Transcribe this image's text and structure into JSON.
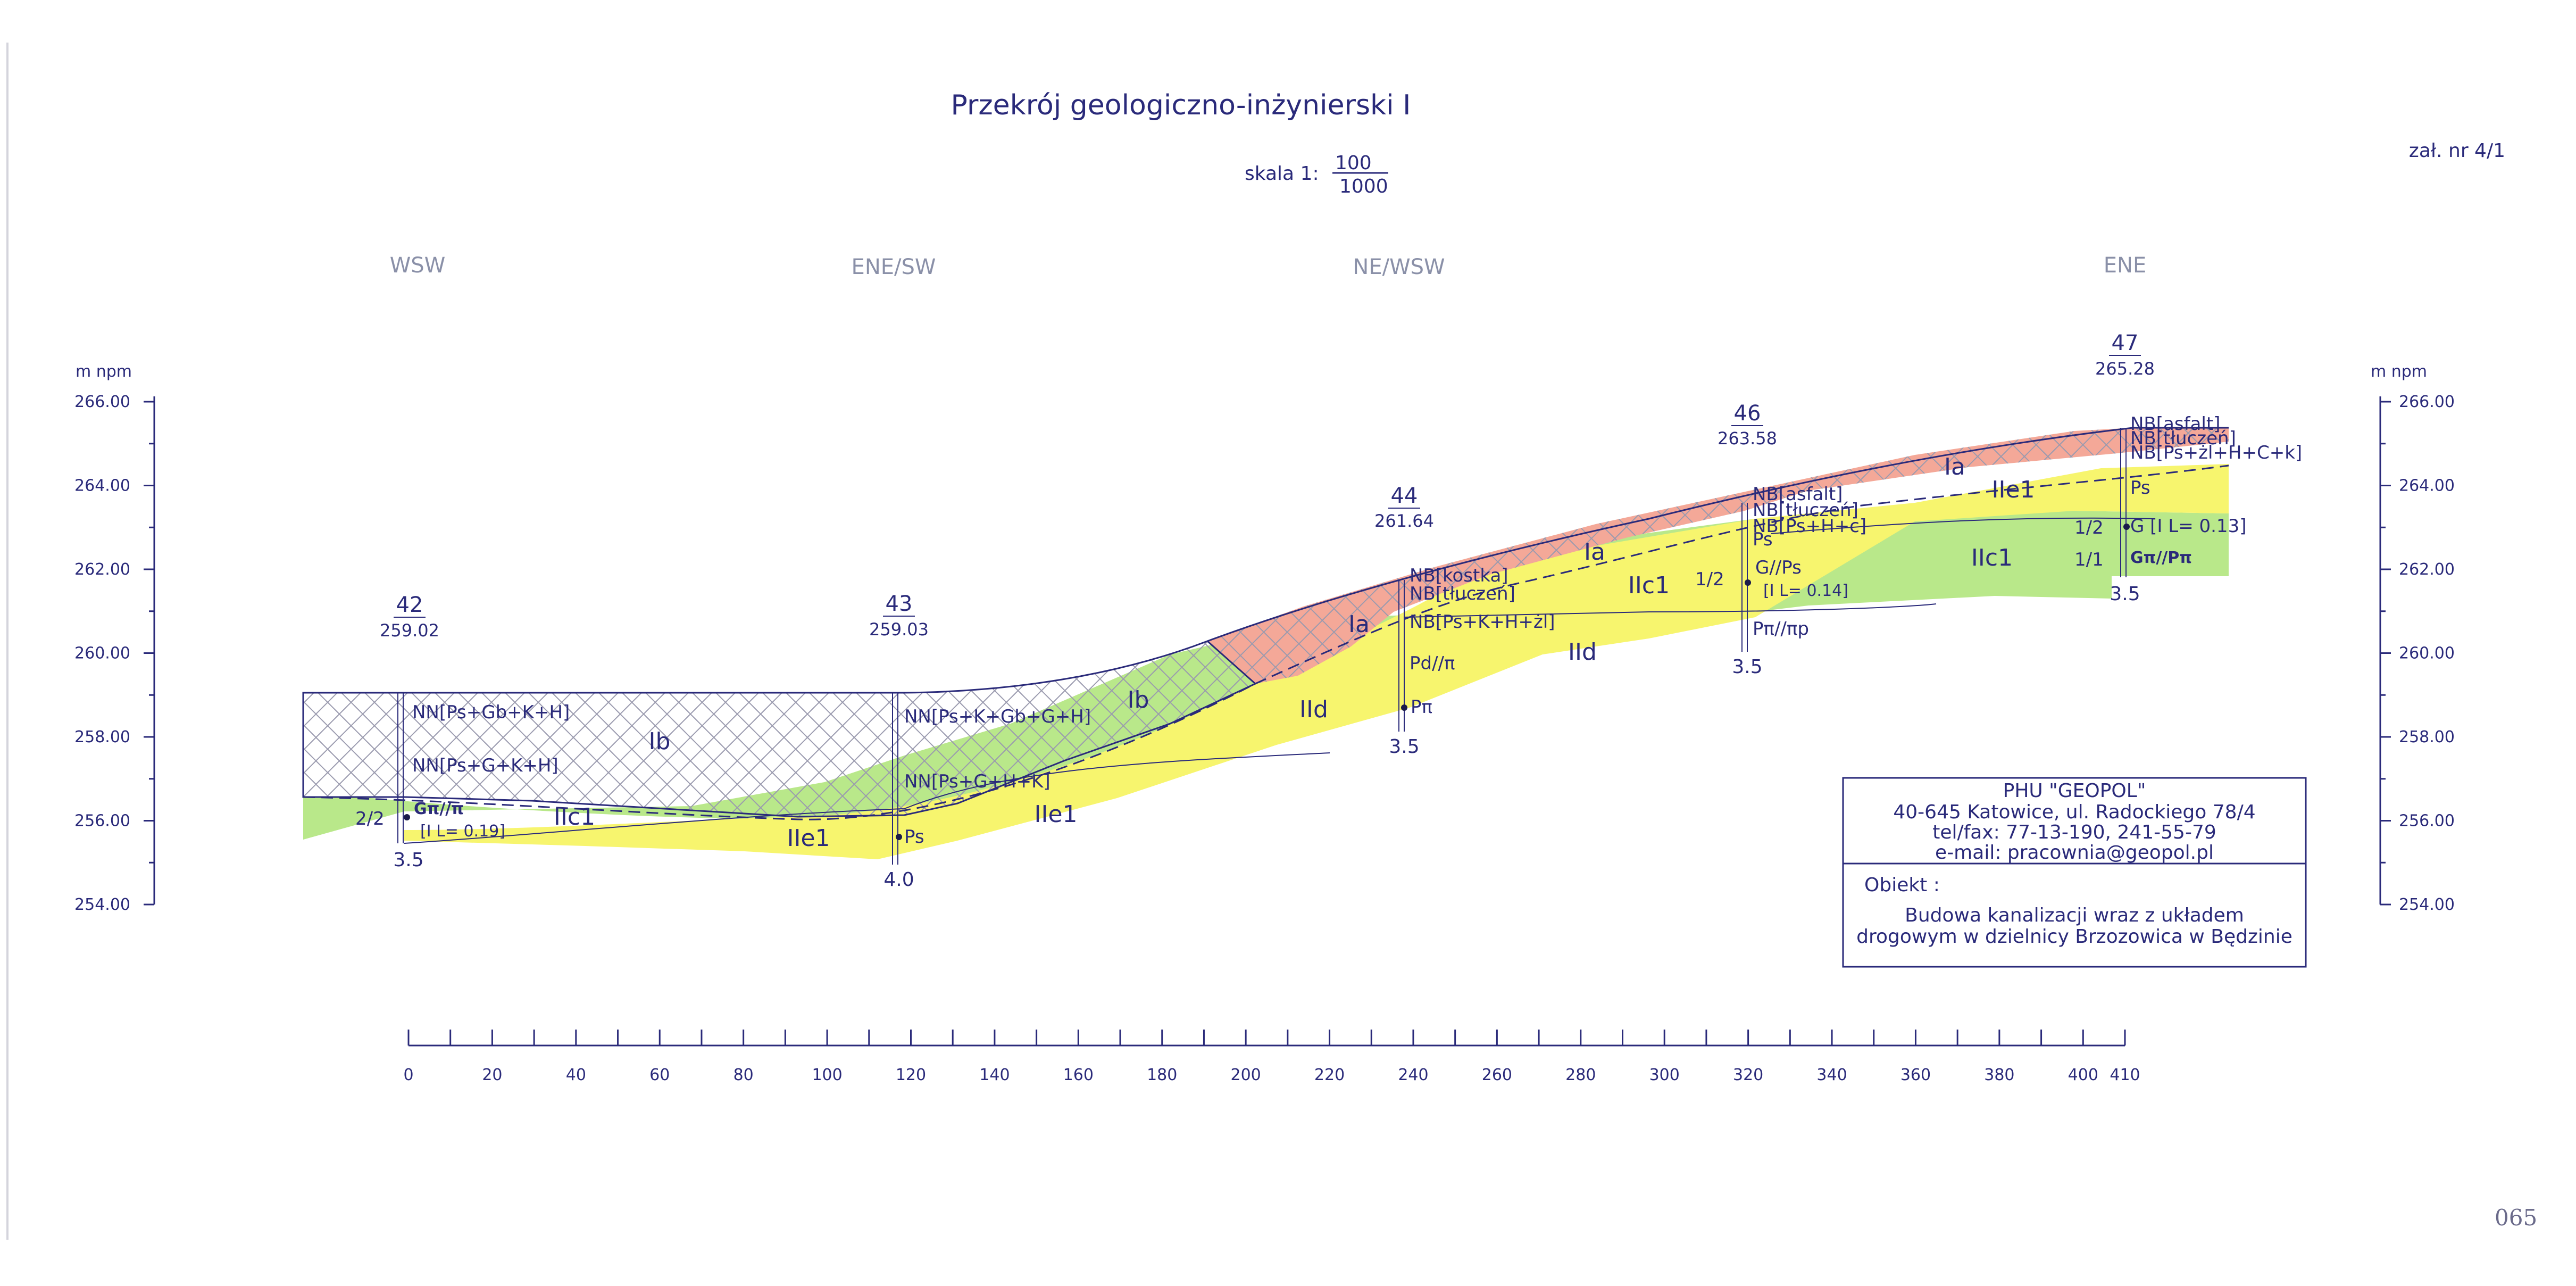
{
  "title": "Przekrój geologiczno-inżynierski I",
  "scale": {
    "prefix": "skala 1:",
    "numerator": "100",
    "denominator": "1000"
  },
  "attachment": "zał. nr 4/1",
  "directions": [
    "WSW",
    "ENE/SW",
    "NE/WSW",
    "ENE"
  ],
  "y_axis": {
    "unit_label": "m npm",
    "ticks": [
      "266.00",
      "264.00",
      "262.00",
      "260.00",
      "258.00",
      "256.00",
      "254.00"
    ],
    "range": [
      254,
      266
    ]
  },
  "x_axis": {
    "ticks": [
      "0",
      "20",
      "40",
      "60",
      "80",
      "100",
      "120",
      "140",
      "160",
      "180",
      "200",
      "220",
      "240",
      "260",
      "280",
      "300",
      "320",
      "340",
      "360",
      "380",
      "400",
      "410"
    ],
    "range": [
      0,
      410
    ]
  },
  "colors": {
    "anthropogenic_fill": "#f4a898",
    "sand_fill": "#f7f56e",
    "clay_fill": "#b9e88a",
    "line": "#2a2a7a"
  },
  "boreholes": [
    {
      "number": "42",
      "elevation": "259.02",
      "depth": "3.5",
      "distance": 0,
      "labels": [
        "NN[Ps+Gb+K+H]",
        "NN[Ps+G+K+H]",
        "Gπ//π",
        "[I L= 0.19]"
      ],
      "side_code": "2/2"
    },
    {
      "number": "43",
      "elevation": "259.03",
      "depth": "4.0",
      "distance": 117,
      "labels": [
        "NN[Ps+K+Gb+G+H]",
        "NN[Ps+G+H+K]",
        "Ps"
      ]
    },
    {
      "number": "44",
      "elevation": "261.64",
      "depth": "3.5",
      "distance": 239,
      "labels": [
        "NB[kostka]",
        "NB[tłuczeń]",
        "NB[Ps+K+H+żl]",
        "Pd//π",
        "Pπ"
      ]
    },
    {
      "number": "46",
      "elevation": "263.58",
      "depth": "3.5",
      "distance": 320,
      "labels": [
        "NB[asfalt]",
        "NB[tłuczeń]",
        "NB[Ps+H+c]",
        "Ps",
        "G//Ps",
        "[I L= 0.14]",
        "Pπ//πp"
      ],
      "side_code": "1/2"
    },
    {
      "number": "47",
      "elevation": "265.28",
      "depth": "3.5",
      "distance": 411,
      "labels": [
        "NB[asfalt]",
        "NB[tłuczeń]",
        "NB[Ps+żl+H+C+k]",
        "Ps",
        "G [I L= 0.13]",
        "Gπ//Pπ"
      ],
      "side_codes": [
        "1/2",
        "1/1"
      ]
    }
  ],
  "units": [
    "Ib",
    "Ib",
    "Ia",
    "Ia",
    "Ia",
    "IIc1",
    "IIc1",
    "IIc1",
    "IIe1",
    "IIe1",
    "IIe1",
    "IId",
    "IId"
  ],
  "company_box": {
    "lines": [
      "PHU \"GEOPOL\"",
      "40-645 Katowice, ul. Radockiego 78/4",
      "tel/fax: 77-13-190, 241-55-79",
      "e-mail: pracownia@geopol.pl"
    ],
    "object_label": "Obiekt :",
    "object_lines": [
      "Budowa kanalizacji wraz z układem",
      "drogowym w dzielnicy Brzozowica w Będzinie"
    ]
  },
  "page_mark": "065"
}
